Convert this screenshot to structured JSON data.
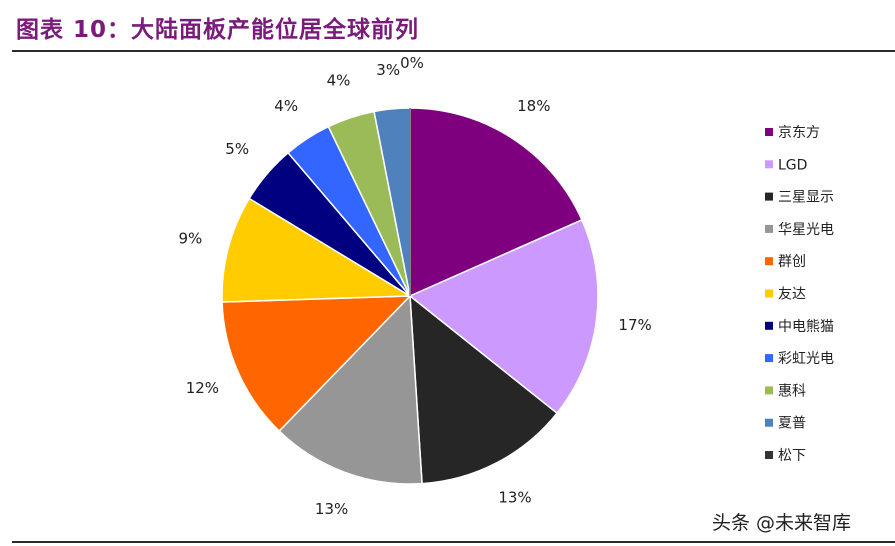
{
  "title": "图表 10：大陆面板产能位居全球前列",
  "watermark": "头条 @未来智库",
  "chart_data": {
    "type": "pie",
    "title": "",
    "legend_position": "right",
    "categories": [
      "京东方",
      "LGD",
      "三星显示",
      "华星光电",
      "群创",
      "友达",
      "中电熊猫",
      "彩虹光电",
      "惠科",
      "夏普",
      "松下"
    ],
    "values": [
      18,
      17,
      13,
      13,
      12,
      9,
      5,
      4,
      4,
      3,
      0
    ],
    "labels": [
      "18%",
      "17%",
      "13%",
      "13%",
      "12%",
      "9%",
      "5%",
      "4%",
      "4%",
      "3%",
      "0%"
    ],
    "colors": [
      "#7f007f",
      "#cc99ff",
      "#262626",
      "#969696",
      "#ff6600",
      "#ffcc00",
      "#000080",
      "#3366ff",
      "#9bbb59",
      "#4f81bd",
      "#333333"
    ]
  }
}
